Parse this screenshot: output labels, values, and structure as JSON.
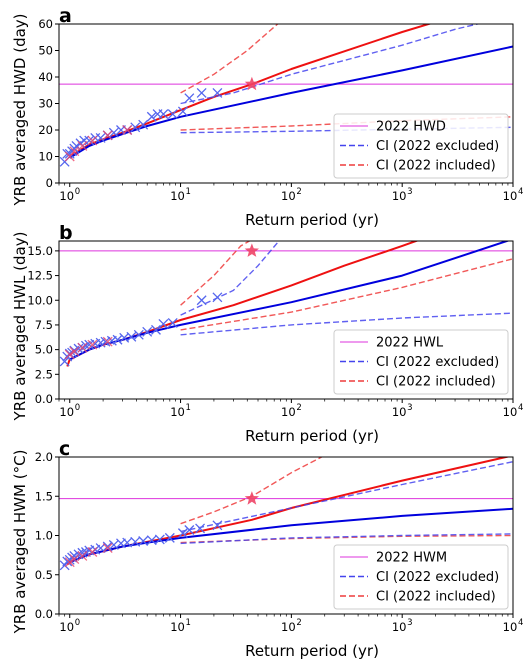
{
  "chart_data": [
    {
      "type": "line",
      "panel_label": "a",
      "ylabel": "YRB averaged HWD (day)",
      "xlabel": "Return period (yr)",
      "xscale": "log",
      "xlim": [
        0.8,
        10000
      ],
      "ylim": [
        0,
        60
      ],
      "yticks": [
        "0",
        "10",
        "20",
        "30",
        "40",
        "50",
        "60"
      ],
      "xticks": [
        {
          "base": "10",
          "exp": "0",
          "value": 1
        },
        {
          "base": "10",
          "exp": "1",
          "value": 10
        },
        {
          "base": "10",
          "exp": "2",
          "value": 100
        },
        {
          "base": "10",
          "exp": "3",
          "value": 1000
        },
        {
          "base": "10",
          "exp": "4",
          "value": 10000
        }
      ],
      "legend_position": "lower-right",
      "legend": [
        {
          "label": "2022 HWD",
          "style": "thin",
          "color": "#dd33dd"
        },
        {
          "label": "CI (2022 excluded)",
          "style": "dashed",
          "color": "#4444ee"
        },
        {
          "label": "CI (2022 included)",
          "style": "dashed",
          "color": "#ee3b3b"
        }
      ],
      "hline": 37.3,
      "star": {
        "x": 44,
        "y": 37.3
      },
      "series": [
        {
          "kind": "solid",
          "color": "#ee1111",
          "points": [
            [
              1,
              10
            ],
            [
              1.5,
              14.5
            ],
            [
              2,
              16.5
            ],
            [
              3,
              19
            ],
            [
              5,
              22.5
            ],
            [
              10,
              27.5
            ],
            [
              20,
              32.5
            ],
            [
              44,
              37.3
            ],
            [
              100,
              43
            ],
            [
              1000,
              57
            ],
            [
              3000,
              63
            ]
          ]
        },
        {
          "kind": "solid",
          "color": "#0000dd",
          "points": [
            [
              1,
              9.5
            ],
            [
              1.5,
              14
            ],
            [
              2,
              16
            ],
            [
              3,
              18.5
            ],
            [
              5,
              21.5
            ],
            [
              10,
              25
            ],
            [
              100,
              34
            ],
            [
              1000,
              42.5
            ],
            [
              10000,
              51.5
            ]
          ]
        },
        {
          "kind": "dashed",
          "color": "#ee3b3b",
          "points": [
            [
              10,
              34
            ],
            [
              20,
              41
            ],
            [
              40,
              50
            ],
            [
              80,
              61
            ]
          ]
        },
        {
          "kind": "dashed",
          "color": "#ee3b3b",
          "points": [
            [
              10,
              20
            ],
            [
              100,
              21.5
            ],
            [
              1000,
              23.5
            ],
            [
              10000,
              25
            ]
          ]
        },
        {
          "kind": "dashed",
          "color": "#4444ee",
          "points": [
            [
              10,
              30
            ],
            [
              30,
              34
            ],
            [
              100,
              41
            ],
            [
              1000,
              52
            ],
            [
              3000,
              58
            ],
            [
              6000,
              61
            ]
          ]
        },
        {
          "kind": "dashed",
          "color": "#4444ee",
          "points": [
            [
              10,
              19
            ],
            [
              100,
              19.5
            ],
            [
              1000,
              20.3
            ],
            [
              10000,
              21
            ]
          ]
        }
      ],
      "markers_blue": [
        [
          0.9,
          8
        ],
        [
          0.95,
          11
        ],
        [
          1.0,
          11
        ],
        [
          1.05,
          12
        ],
        [
          1.1,
          13
        ],
        [
          1.15,
          14
        ],
        [
          1.25,
          15
        ],
        [
          1.35,
          16
        ],
        [
          1.5,
          16
        ],
        [
          1.7,
          17
        ],
        [
          1.9,
          17
        ],
        [
          2.2,
          18
        ],
        [
          2.5,
          19
        ],
        [
          2.9,
          20
        ],
        [
          3.3,
          20
        ],
        [
          3.9,
          21
        ],
        [
          4.6,
          22
        ],
        [
          5.5,
          25
        ],
        [
          6.2,
          26
        ],
        [
          7.0,
          26
        ],
        [
          8.5,
          26
        ],
        [
          10.5,
          27
        ],
        [
          12,
          32
        ],
        [
          15.5,
          34
        ],
        [
          21.5,
          34
        ]
      ],
      "markers_red": [
        [
          1.0,
          10
        ],
        [
          1.1,
          12
        ],
        [
          1.3,
          14
        ],
        [
          1.6,
          16
        ],
        [
          2.2,
          18
        ],
        [
          3.3,
          20
        ]
      ]
    },
    {
      "type": "line",
      "panel_label": "b",
      "ylabel": "YRB averaged HWL (day)",
      "xlabel": "Return period (yr)",
      "xscale": "log",
      "xlim": [
        0.8,
        10000
      ],
      "ylim": [
        0,
        16
      ],
      "yticks": [
        "0.0",
        "2.5",
        "5.0",
        "7.5",
        "10.0",
        "12.5",
        "15.0"
      ],
      "ytick_values": [
        0,
        2.5,
        5,
        7.5,
        10,
        12.5,
        15
      ],
      "xticks": [
        {
          "base": "10",
          "exp": "0",
          "value": 1
        },
        {
          "base": "10",
          "exp": "1",
          "value": 10
        },
        {
          "base": "10",
          "exp": "2",
          "value": 100
        },
        {
          "base": "10",
          "exp": "3",
          "value": 1000
        },
        {
          "base": "10",
          "exp": "4",
          "value": 10000
        }
      ],
      "legend_position": "lower-right",
      "legend": [
        {
          "label": "2022 HWL",
          "style": "thin",
          "color": "#dd33dd"
        },
        {
          "label": "CI (2022 excluded)",
          "style": "dashed",
          "color": "#4444ee"
        },
        {
          "label": "CI (2022 included)",
          "style": "dashed",
          "color": "#ee3b3b"
        }
      ],
      "hline": 15,
      "star": {
        "x": 44,
        "y": 15
      },
      "series": [
        {
          "kind": "solid",
          "color": "#ee1111",
          "points": [
            [
              0.95,
              3.3
            ],
            [
              1,
              4
            ],
            [
              1.5,
              5
            ],
            [
              2,
              5.5
            ],
            [
              3,
              6
            ],
            [
              5,
              6.8
            ],
            [
              10,
              8
            ],
            [
              30,
              9.5
            ],
            [
              100,
              11.5
            ],
            [
              300,
              13.5
            ],
            [
              1000,
              15.5
            ],
            [
              1500,
              16.2
            ]
          ]
        },
        {
          "kind": "solid",
          "color": "#0000dd",
          "points": [
            [
              1,
              4
            ],
            [
              1.5,
              5
            ],
            [
              2,
              5.5
            ],
            [
              3,
              6
            ],
            [
              5,
              6.7
            ],
            [
              10,
              7.5
            ],
            [
              100,
              9.8
            ],
            [
              1000,
              12.5
            ],
            [
              10000,
              16.2
            ]
          ]
        },
        {
          "kind": "dashed",
          "color": "#ee3b3b",
          "points": [
            [
              10,
              9.5
            ],
            [
              20,
              12.5
            ],
            [
              35,
              15.5
            ],
            [
              45,
              16.2
            ]
          ]
        },
        {
          "kind": "dashed",
          "color": "#ee3b3b",
          "points": [
            [
              10,
              7
            ],
            [
              100,
              8.8
            ],
            [
              1000,
              11.3
            ],
            [
              10000,
              14.2
            ]
          ]
        },
        {
          "kind": "dashed",
          "color": "#4444ee",
          "points": [
            [
              10,
              8.5
            ],
            [
              30,
              11
            ],
            [
              50,
              13.5
            ],
            [
              80,
              16.2
            ]
          ]
        },
        {
          "kind": "dashed",
          "color": "#4444ee",
          "points": [
            [
              10,
              6.5
            ],
            [
              100,
              7.5
            ],
            [
              1000,
              8.2
            ],
            [
              10000,
              8.7
            ]
          ]
        }
      ],
      "markers_blue": [
        [
          0.9,
          3.8
        ],
        [
          0.95,
          4.3
        ],
        [
          1.0,
          4.6
        ],
        [
          1.05,
          4.7
        ],
        [
          1.1,
          4.9
        ],
        [
          1.2,
          5.1
        ],
        [
          1.3,
          5.2
        ],
        [
          1.4,
          5.4
        ],
        [
          1.5,
          5.5
        ],
        [
          1.7,
          5.6
        ],
        [
          1.9,
          5.7
        ],
        [
          2.1,
          5.8
        ],
        [
          2.4,
          5.9
        ],
        [
          2.7,
          6.0
        ],
        [
          3.1,
          6.2
        ],
        [
          3.6,
          6.3
        ],
        [
          4.2,
          6.5
        ],
        [
          5.0,
          6.8
        ],
        [
          6.0,
          7.0
        ],
        [
          7.0,
          7.6
        ],
        [
          8.5,
          7.7
        ],
        [
          15.5,
          10
        ],
        [
          21.5,
          10.3
        ]
      ],
      "markers_red": [
        [
          1.0,
          4.5
        ],
        [
          1.1,
          4.8
        ],
        [
          1.3,
          5.2
        ],
        [
          1.6,
          5.5
        ],
        [
          2.2,
          5.8
        ]
      ]
    },
    {
      "type": "line",
      "panel_label": "c",
      "ylabel": "YRB averaged HWM (°C)",
      "xlabel": "Return period (yr)",
      "xscale": "log",
      "xlim": [
        0.8,
        10000
      ],
      "ylim": [
        0,
        2
      ],
      "yticks": [
        "0.0",
        "0.5",
        "1.0",
        "1.5",
        "2.0"
      ],
      "ytick_values": [
        0,
        0.5,
        1,
        1.5,
        2
      ],
      "xticks": [
        {
          "base": "10",
          "exp": "0",
          "value": 1
        },
        {
          "base": "10",
          "exp": "1",
          "value": 10
        },
        {
          "base": "10",
          "exp": "2",
          "value": 100
        },
        {
          "base": "10",
          "exp": "3",
          "value": 1000
        },
        {
          "base": "10",
          "exp": "4",
          "value": 10000
        }
      ],
      "legend_position": "lower-right",
      "legend": [
        {
          "label": "2022 HWM",
          "style": "thin",
          "color": "#dd33dd"
        },
        {
          "label": "CI (2022 excluded)",
          "style": "dashed",
          "color": "#4444ee"
        },
        {
          "label": "CI (2022 included)",
          "style": "dashed",
          "color": "#ee3b3b"
        }
      ],
      "hline": 1.47,
      "star": {
        "x": 44,
        "y": 1.47
      },
      "series": [
        {
          "kind": "solid",
          "color": "#ee1111",
          "points": [
            [
              0.95,
              0.63
            ],
            [
              1,
              0.66
            ],
            [
              1.5,
              0.76
            ],
            [
              2,
              0.8
            ],
            [
              3,
              0.86
            ],
            [
              5,
              0.92
            ],
            [
              10,
              1.0
            ],
            [
              44,
              1.2
            ],
            [
              100,
              1.35
            ],
            [
              1000,
              1.7
            ],
            [
              10000,
              2.02
            ]
          ]
        },
        {
          "kind": "solid",
          "color": "#0000dd",
          "points": [
            [
              1,
              0.66
            ],
            [
              1.5,
              0.76
            ],
            [
              2,
              0.8
            ],
            [
              3,
              0.86
            ],
            [
              5,
              0.91
            ],
            [
              10,
              0.97
            ],
            [
              100,
              1.13
            ],
            [
              1000,
              1.25
            ],
            [
              10000,
              1.34
            ]
          ]
        },
        {
          "kind": "dashed",
          "color": "#ee3b3b",
          "points": [
            [
              10,
              1.15
            ],
            [
              20,
              1.3
            ],
            [
              44,
              1.5
            ],
            [
              100,
              1.8
            ],
            [
              200,
              2.02
            ]
          ]
        },
        {
          "kind": "dashed",
          "color": "#ee3b3b",
          "points": [
            [
              10,
              0.91
            ],
            [
              100,
              0.96
            ],
            [
              1000,
              0.99
            ],
            [
              10000,
              1.0
            ]
          ]
        },
        {
          "kind": "dashed",
          "color": "#4444ee",
          "points": [
            [
              10,
              1.05
            ],
            [
              100,
              1.35
            ],
            [
              1000,
              1.65
            ],
            [
              10000,
              1.94
            ]
          ]
        },
        {
          "kind": "dashed",
          "color": "#4444ee",
          "points": [
            [
              10,
              0.9
            ],
            [
              100,
              0.97
            ],
            [
              1000,
              1.0
            ],
            [
              10000,
              1.02
            ]
          ]
        }
      ],
      "markers_blue": [
        [
          0.9,
          0.62
        ],
        [
          0.95,
          0.67
        ],
        [
          1.0,
          0.69
        ],
        [
          1.05,
          0.72
        ],
        [
          1.1,
          0.74
        ],
        [
          1.2,
          0.76
        ],
        [
          1.3,
          0.78
        ],
        [
          1.4,
          0.79
        ],
        [
          1.5,
          0.81
        ],
        [
          1.7,
          0.82
        ],
        [
          1.9,
          0.84
        ],
        [
          2.2,
          0.86
        ],
        [
          2.5,
          0.88
        ],
        [
          2.9,
          0.9
        ],
        [
          3.3,
          0.91
        ],
        [
          3.9,
          0.92
        ],
        [
          4.6,
          0.93
        ],
        [
          5.5,
          0.94
        ],
        [
          6.5,
          0.95
        ],
        [
          8.0,
          0.97
        ],
        [
          10.5,
          1.03
        ],
        [
          12,
          1.07
        ],
        [
          15,
          1.09
        ],
        [
          21.5,
          1.13
        ]
      ],
      "markers_red": [
        [
          1.0,
          0.66
        ],
        [
          1.1,
          0.7
        ],
        [
          1.3,
          0.74
        ],
        [
          1.6,
          0.79
        ],
        [
          2.2,
          0.84
        ]
      ]
    }
  ]
}
